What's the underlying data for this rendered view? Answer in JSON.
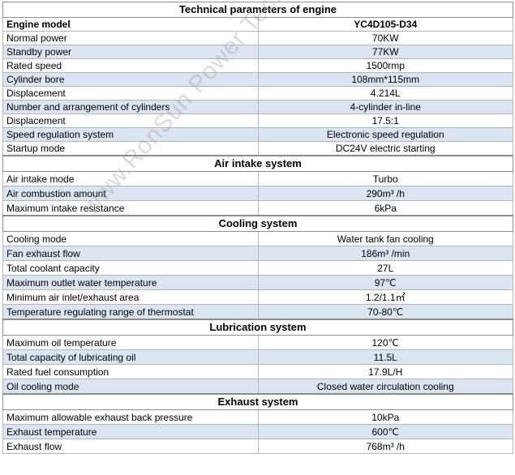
{
  "title": "Technical parameters of engine",
  "header": {
    "label": "Engine model",
    "value": "YC4D105-D34"
  },
  "groups": [
    {
      "heading": null,
      "rows": [
        {
          "label": "Normal power",
          "value": "70KW"
        },
        {
          "label": "Standby power",
          "value": "77KW"
        },
        {
          "label": "Rated speed",
          "value": "1500rmp"
        },
        {
          "label": "Cylinder bore",
          "value": "108mm*115mm"
        },
        {
          "label": "Displacement",
          "value": "4.214L"
        },
        {
          "label": "Number and arrangement of cylinders",
          "value": "4-cylinder in-line"
        },
        {
          "label": "Displacement",
          "value": "17.5:1"
        },
        {
          "label": "Speed regulation system",
          "value": "Electronic speed regulation"
        },
        {
          "label": "Startup mode",
          "value": "DC24V electric starting"
        }
      ]
    },
    {
      "heading": "Air intake system",
      "rows": [
        {
          "label": "Air intake mode",
          "value": "Turbo"
        },
        {
          "label": "Air combustion amount",
          "value": "290m³ /h"
        },
        {
          "label": "Maximum intake resistance",
          "value": "6kPa"
        }
      ]
    },
    {
      "heading": "Cooling system",
      "rows": [
        {
          "label": "Cooling mode",
          "value": "Water tank fan cooling"
        },
        {
          "label": "Fan exhaust flow",
          "value": "186m³  /min"
        },
        {
          "label": "Total coolant capacity",
          "value": "27L"
        },
        {
          "label": "Maximum outlet water temperature",
          "value": "97℃"
        },
        {
          "label": "Minimum air inlet/exhaust area",
          "value": "1.2/1.1㎡"
        },
        {
          "label": "Temperature regulating range of thermostat",
          "value": "70-80℃"
        }
      ]
    },
    {
      "heading": "Lubrication system",
      "rows": [
        {
          "label": "Maximum oil temperature",
          "value": "120℃"
        },
        {
          "label": "Total capacity of lubricating oil",
          "value": "11.5L"
        },
        {
          "label": "Rated fuel consumption",
          "value": "17.9L/H"
        },
        {
          "label": "Oil cooling mode",
          "value": "Closed water circulation cooling"
        }
      ]
    },
    {
      "heading": "Exhaust system",
      "rows": [
        {
          "label": "Maximum allowable exhaust back pressure",
          "value": "10kPa"
        },
        {
          "label": "Exhaust temperature",
          "value": "600℃"
        },
        {
          "label": "Exhaust flow",
          "value": "768m³ /h"
        }
      ]
    }
  ],
  "watermark": "www.RonSun Power Technology Co.,"
}
